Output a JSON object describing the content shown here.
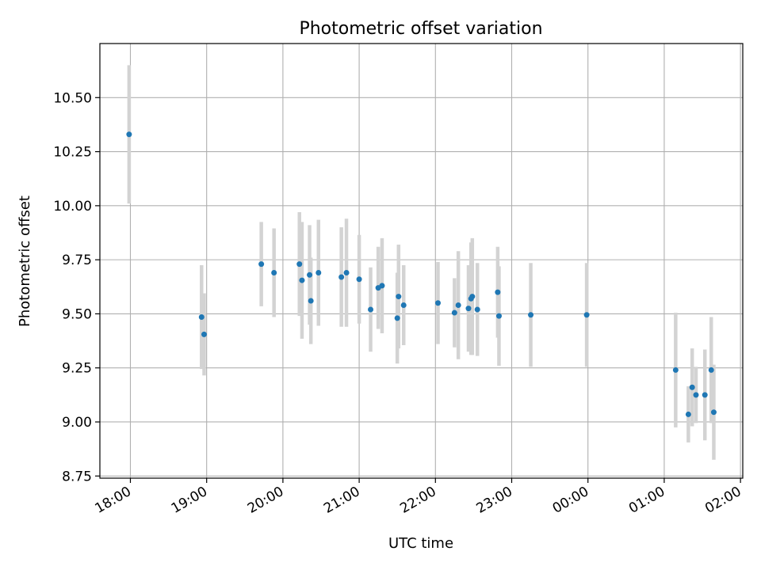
{
  "chart_data": {
    "type": "scatter",
    "title": "Photometric offset variation",
    "xlabel": "UTC time",
    "ylabel": "Photometric offset",
    "x_ticks": [
      "18:00",
      "19:00",
      "20:00",
      "21:00",
      "22:00",
      "23:00",
      "00:00",
      "01:00",
      "02:00"
    ],
    "x_tick_hours": [
      18,
      19,
      20,
      21,
      22,
      23,
      24,
      25,
      26
    ],
    "y_ticks": [
      "8.75",
      "9.00",
      "9.25",
      "9.50",
      "9.75",
      "10.00",
      "10.25",
      "10.50"
    ],
    "y_tick_values": [
      8.75,
      9.0,
      9.25,
      9.5,
      9.75,
      10.0,
      10.25,
      10.5
    ],
    "xlim_hours": [
      17.6,
      26.03
    ],
    "ylim": [
      8.74,
      10.75
    ],
    "grid": true,
    "marker_color": "#1f77b4",
    "errorbar_color": "#d3d3d3",
    "points": [
      {
        "x": "17:59",
        "y": 10.33,
        "err": 0.32
      },
      {
        "x": "18:56",
        "y": 9.485,
        "err": 0.24
      },
      {
        "x": "18:58",
        "y": 9.405,
        "err": 0.19
      },
      {
        "x": "19:43",
        "y": 9.73,
        "err": 0.195
      },
      {
        "x": "19:53",
        "y": 9.69,
        "err": 0.205
      },
      {
        "x": "20:13",
        "y": 9.73,
        "err": 0.24
      },
      {
        "x": "20:15",
        "y": 9.655,
        "err": 0.27
      },
      {
        "x": "20:21",
        "y": 9.68,
        "err": 0.23
      },
      {
        "x": "20:22",
        "y": 9.56,
        "err": 0.2
      },
      {
        "x": "20:28",
        "y": 9.69,
        "err": 0.245
      },
      {
        "x": "20:46",
        "y": 9.67,
        "err": 0.23
      },
      {
        "x": "20:50",
        "y": 9.69,
        "err": 0.25
      },
      {
        "x": "21:00",
        "y": 9.66,
        "err": 0.205
      },
      {
        "x": "21:09",
        "y": 9.52,
        "err": 0.195
      },
      {
        "x": "21:15",
        "y": 9.62,
        "err": 0.19
      },
      {
        "x": "21:18",
        "y": 9.63,
        "err": 0.22
      },
      {
        "x": "21:30",
        "y": 9.48,
        "err": 0.21
      },
      {
        "x": "21:31",
        "y": 9.58,
        "err": 0.24
      },
      {
        "x": "21:35",
        "y": 9.54,
        "err": 0.185
      },
      {
        "x": "22:02",
        "y": 9.55,
        "err": 0.19
      },
      {
        "x": "22:15",
        "y": 9.505,
        "err": 0.16
      },
      {
        "x": "22:18",
        "y": 9.54,
        "err": 0.25
      },
      {
        "x": "22:26",
        "y": 9.525,
        "err": 0.2
      },
      {
        "x": "22:28",
        "y": 9.57,
        "err": 0.26
      },
      {
        "x": "22:29",
        "y": 9.58,
        "err": 0.27
      },
      {
        "x": "22:33",
        "y": 9.52,
        "err": 0.215
      },
      {
        "x": "22:49",
        "y": 9.6,
        "err": 0.21
      },
      {
        "x": "22:50",
        "y": 9.49,
        "err": 0.23
      },
      {
        "x": "23:15",
        "y": 9.495,
        "err": 0.24
      },
      {
        "x": "23:59",
        "y": 9.495,
        "err": 0.24
      },
      {
        "x": "01:09",
        "y": 9.24,
        "err": 0.265
      },
      {
        "x": "01:19",
        "y": 9.035,
        "err": 0.13
      },
      {
        "x": "01:22",
        "y": 9.16,
        "err": 0.18
      },
      {
        "x": "01:25",
        "y": 9.125,
        "err": 0.13
      },
      {
        "x": "01:32",
        "y": 9.125,
        "err": 0.21
      },
      {
        "x": "01:37",
        "y": 9.24,
        "err": 0.245
      },
      {
        "x": "01:39",
        "y": 9.045,
        "err": 0.22
      }
    ]
  }
}
